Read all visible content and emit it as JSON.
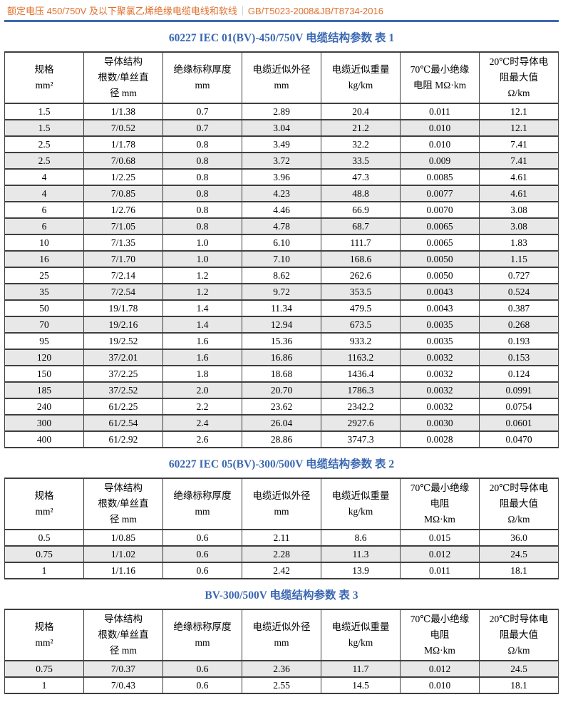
{
  "header_bar": {
    "left_text": "额定电压 450/750V 及以下聚氯乙烯绝缘电缆电线和软线",
    "divider": "｜",
    "right_text": "GB/T5023-2008&JB/T8734-2016"
  },
  "colors": {
    "header_orange": "#E0702E",
    "rule_blue": "#3E68B2",
    "title_blue": "#3A67B2",
    "stripe_gray": "#E8E8E8",
    "border_gray": "#3f3f3f"
  },
  "tables": [
    {
      "title": "60227 IEC 01(BV)-450/750V 电缆结构参数  表 1",
      "stripe_start_gray": false,
      "columns": [
        [
          "规格",
          "mm²"
        ],
        [
          "导体结构",
          "根数/单丝直",
          "径 mm"
        ],
        [
          "绝缘标称厚度",
          "mm"
        ],
        [
          "电缆近似外径",
          "mm"
        ],
        [
          "电缆近似重量",
          "kg/km"
        ],
        [
          "70℃最小绝缘",
          "电阻 MΩ·km"
        ],
        [
          "20℃时导体电",
          "阻最大值",
          "Ω/km"
        ]
      ],
      "rows": [
        [
          "1.5",
          "1/1.38",
          "0.7",
          "2.89",
          "20.4",
          "0.011",
          "12.1"
        ],
        [
          "1.5",
          "7/0.52",
          "0.7",
          "3.04",
          "21.2",
          "0.010",
          "12.1"
        ],
        [
          "2.5",
          "1/1.78",
          "0.8",
          "3.49",
          "32.2",
          "0.010",
          "7.41"
        ],
        [
          "2.5",
          "7/0.68",
          "0.8",
          "3.72",
          "33.5",
          "0.009",
          "7.41"
        ],
        [
          "4",
          "1/2.25",
          "0.8",
          "3.96",
          "47.3",
          "0.0085",
          "4.61"
        ],
        [
          "4",
          "7/0.85",
          "0.8",
          "4.23",
          "48.8",
          "0.0077",
          "4.61"
        ],
        [
          "6",
          "1/2.76",
          "0.8",
          "4.46",
          "66.9",
          "0.0070",
          "3.08"
        ],
        [
          "6",
          "7/1.05",
          "0.8",
          "4.78",
          "68.7",
          "0.0065",
          "3.08"
        ],
        [
          "10",
          "7/1.35",
          "1.0",
          "6.10",
          "111.7",
          "0.0065",
          "1.83"
        ],
        [
          "16",
          "7/1.70",
          "1.0",
          "7.10",
          "168.6",
          "0.0050",
          "1.15"
        ],
        [
          "25",
          "7/2.14",
          "1.2",
          "8.62",
          "262.6",
          "0.0050",
          "0.727"
        ],
        [
          "35",
          "7/2.54",
          "1.2",
          "9.72",
          "353.5",
          "0.0043",
          "0.524"
        ],
        [
          "50",
          "19/1.78",
          "1.4",
          "11.34",
          "479.5",
          "0.0043",
          "0.387"
        ],
        [
          "70",
          "19/2.16",
          "1.4",
          "12.94",
          "673.5",
          "0.0035",
          "0.268"
        ],
        [
          "95",
          "19/2.52",
          "1.6",
          "15.36",
          "933.2",
          "0.0035",
          "0.193"
        ],
        [
          "120",
          "37/2.01",
          "1.6",
          "16.86",
          "1163.2",
          "0.0032",
          "0.153"
        ],
        [
          "150",
          "37/2.25",
          "1.8",
          "18.68",
          "1436.4",
          "0.0032",
          "0.124"
        ],
        [
          "185",
          "37/2.52",
          "2.0",
          "20.70",
          "1786.3",
          "0.0032",
          "0.0991"
        ],
        [
          "240",
          "61/2.25",
          "2.2",
          "23.62",
          "2342.2",
          "0.0032",
          "0.0754"
        ],
        [
          "300",
          "61/2.54",
          "2.4",
          "26.04",
          "2927.6",
          "0.0030",
          "0.0601"
        ],
        [
          "400",
          "61/2.92",
          "2.6",
          "28.86",
          "3747.3",
          "0.0028",
          "0.0470"
        ]
      ]
    },
    {
      "title": "60227 IEC 05(BV)-300/500V 电缆结构参数  表 2",
      "stripe_start_gray": false,
      "columns": [
        [
          "规格",
          "mm²"
        ],
        [
          "导体结构",
          "根数/单丝直",
          "径 mm"
        ],
        [
          "绝缘标称厚度",
          "mm"
        ],
        [
          "电缆近似外径",
          "mm"
        ],
        [
          "电缆近似重量",
          "kg/km"
        ],
        [
          "70℃最小绝缘",
          "电阻",
          "MΩ·km"
        ],
        [
          "20℃时导体电",
          "阻最大值",
          "Ω/km"
        ]
      ],
      "rows": [
        [
          "0.5",
          "1/0.85",
          "0.6",
          "2.11",
          "8.6",
          "0.015",
          "36.0"
        ],
        [
          "0.75",
          "1/1.02",
          "0.6",
          "2.28",
          "11.3",
          "0.012",
          "24.5"
        ],
        [
          "1",
          "1/1.16",
          "0.6",
          "2.42",
          "13.9",
          "0.011",
          "18.1"
        ]
      ]
    },
    {
      "title": "BV-300/500V 电缆结构参数  表 3",
      "stripe_start_gray": true,
      "columns": [
        [
          "规格",
          "mm²"
        ],
        [
          "导体结构",
          "根数/单丝直",
          "径 mm"
        ],
        [
          "绝缘标称厚度",
          "mm"
        ],
        [
          "电缆近似外径",
          "mm"
        ],
        [
          "电缆近似重量",
          "kg/km"
        ],
        [
          "70℃最小绝缘",
          "电阻",
          "MΩ·km"
        ],
        [
          "20℃时导体电",
          "阻最大值",
          "Ω/km"
        ]
      ],
      "rows": [
        [
          "0.75",
          "7/0.37",
          "0.6",
          "2.36",
          "11.7",
          "0.012",
          "24.5"
        ],
        [
          "1",
          "7/0.43",
          "0.6",
          "2.55",
          "14.5",
          "0.010",
          "18.1"
        ]
      ]
    }
  ]
}
